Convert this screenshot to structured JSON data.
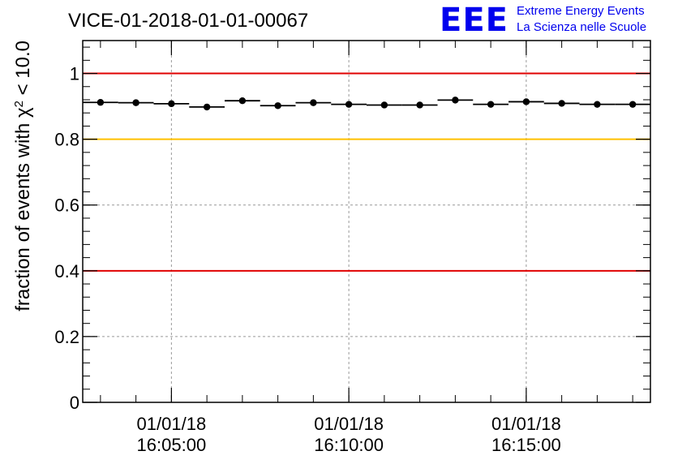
{
  "header": {
    "title": "VICE-01-2018-01-01-00067",
    "logo": {
      "text": "EEE",
      "line1": "Extreme Energy Events",
      "line2": "La Scienza nelle Scuole"
    }
  },
  "chart_data": {
    "type": "scatter",
    "title": "VICE-01-2018-01-01-00067",
    "ylabel": "fraction of events with χ² < 10.0",
    "ylabel_parts": {
      "prefix": "fraction of events with χ",
      "sup": "2",
      "suffix": " < 10.0"
    },
    "ylim": [
      0,
      1.1
    ],
    "yticks": [
      {
        "value": 0,
        "label": "0"
      },
      {
        "value": 0.2,
        "label": "0.2"
      },
      {
        "value": 0.4,
        "label": "0.4"
      },
      {
        "value": 0.6,
        "label": "0.6"
      },
      {
        "value": 0.8,
        "label": "0.8"
      },
      {
        "value": 1,
        "label": "1"
      }
    ],
    "xlim_minutes": [
      0,
      16
    ],
    "xticks": [
      {
        "t": 2.5,
        "date": "01/01/18",
        "time": "16:05:00"
      },
      {
        "t": 7.5,
        "date": "01/01/18",
        "time": "16:10:00"
      },
      {
        "t": 12.5,
        "date": "01/01/18",
        "time": "16:15:00"
      }
    ],
    "bin_width_minutes": 1,
    "points": [
      {
        "t": 0.5,
        "y": 0.912
      },
      {
        "t": 1.5,
        "y": 0.911
      },
      {
        "t": 2.5,
        "y": 0.908
      },
      {
        "t": 3.5,
        "y": 0.898
      },
      {
        "t": 4.5,
        "y": 0.917
      },
      {
        "t": 5.5,
        "y": 0.902
      },
      {
        "t": 6.5,
        "y": 0.911
      },
      {
        "t": 7.5,
        "y": 0.906
      },
      {
        "t": 8.5,
        "y": 0.904
      },
      {
        "t": 9.5,
        "y": 0.904
      },
      {
        "t": 10.5,
        "y": 0.919
      },
      {
        "t": 11.5,
        "y": 0.906
      },
      {
        "t": 12.5,
        "y": 0.914
      },
      {
        "t": 13.5,
        "y": 0.909
      },
      {
        "t": 14.5,
        "y": 0.906
      },
      {
        "t": 15.5,
        "y": 0.906
      }
    ],
    "reference_lines": [
      {
        "name": "upper-red-line",
        "y": 1.0,
        "color": "#e00000"
      },
      {
        "name": "yellow-line",
        "y": 0.8,
        "color": "#ffc000"
      },
      {
        "name": "lower-red-line",
        "y": 0.4,
        "color": "#e00000"
      }
    ],
    "grid": true
  }
}
